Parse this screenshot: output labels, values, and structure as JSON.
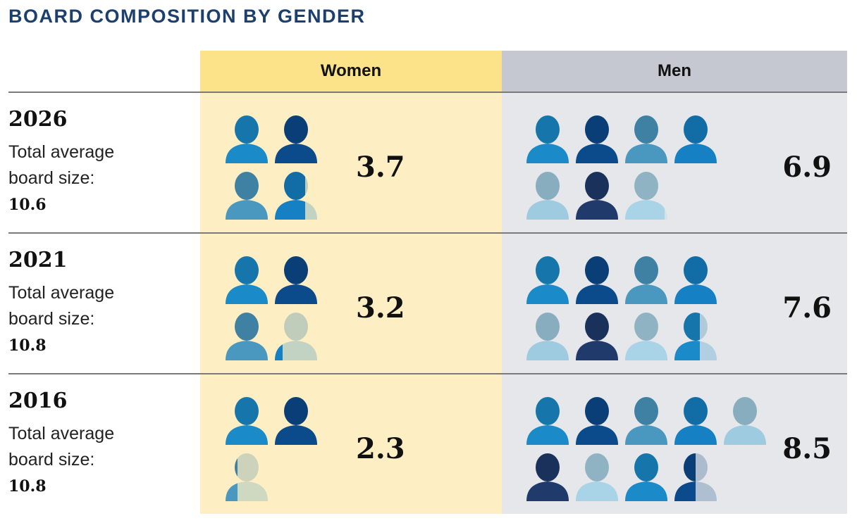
{
  "title": "BOARD COMPOSITION BY GENDER",
  "columns": [
    "Women",
    "Men"
  ],
  "rows": [
    {
      "year": "2026",
      "label": "Total average board size:",
      "board_size": 10.6,
      "women": 3.7,
      "men": 6.9
    },
    {
      "year": "2021",
      "label": "Total average board size:",
      "board_size": 10.8,
      "women": 3.2,
      "men": 7.6
    },
    {
      "year": "2016",
      "label": "Total average board size:",
      "board_size": 10.8,
      "women": 2.3,
      "men": 8.5
    }
  ]
}
